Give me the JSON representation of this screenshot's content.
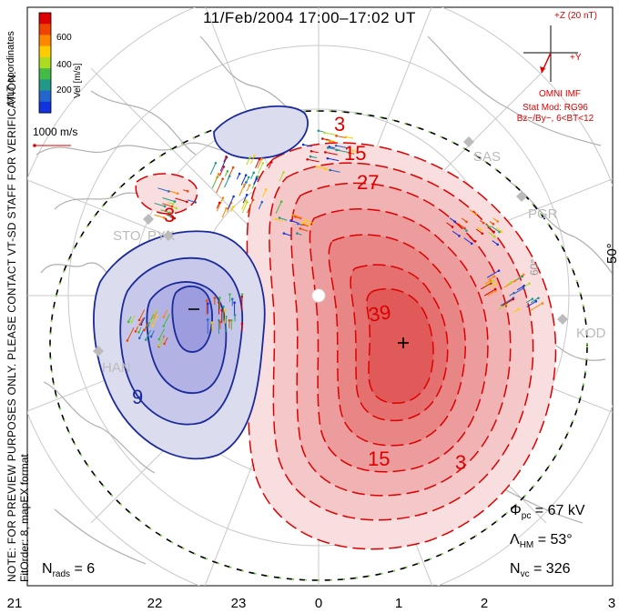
{
  "title": "11/Feb/2004 17:00–17:02 UT",
  "side_note": "NOTE: FOR PREVIEW PURPOSES ONLY. PLEASE CONTACT VT-SD STAFF FOR VERIFICATION.",
  "side_note2": "FitOrder: 8, mapEX format",
  "coord_label": "MLT coordinates",
  "colorbar": {
    "label": "Vel [m/s]",
    "ticks": [
      "600",
      "400",
      "200"
    ],
    "colors": [
      "#dd0000",
      "#ee4400",
      "#ff8800",
      "#ffcc00",
      "#aadd22",
      "#44bb44",
      "#229988",
      "#2266cc",
      "#1133dd"
    ]
  },
  "ref_vector": "1000 m/s",
  "imf": {
    "z_label": "+Z (20 nT)",
    "y_label": "+Y",
    "source": "OMNI IMF",
    "stat_mod": "Stat Mod: RG96",
    "condition": "Bz−/By−, 6<BT<12"
  },
  "mlt_ticks": [
    "21",
    "22",
    "23",
    "0",
    "1",
    "2",
    "3"
  ],
  "lat_label": "50°",
  "lat_label_partial": "60°",
  "sites": [
    "SAS",
    "PGR",
    "KOD",
    "STO",
    "PYK",
    "HAN"
  ],
  "contour_labels": [
    "3",
    "15",
    "27",
    "39",
    "15",
    "3",
    "3",
    "9"
  ],
  "markers": {
    "min": "−",
    "max": "+"
  },
  "stats": {
    "phi_pc": {
      "symbol": "Φ",
      "sub": "pc",
      "value": "= 67 kV"
    },
    "lambda_hm": {
      "symbol": "Λ",
      "sub": "HM",
      "value": "= 53°"
    },
    "n_vc": {
      "symbol": "N",
      "sub": "vc",
      "value": "= 326"
    },
    "n_rads": {
      "symbol": "N",
      "sub": "rads",
      "value": "= 6"
    }
  }
}
